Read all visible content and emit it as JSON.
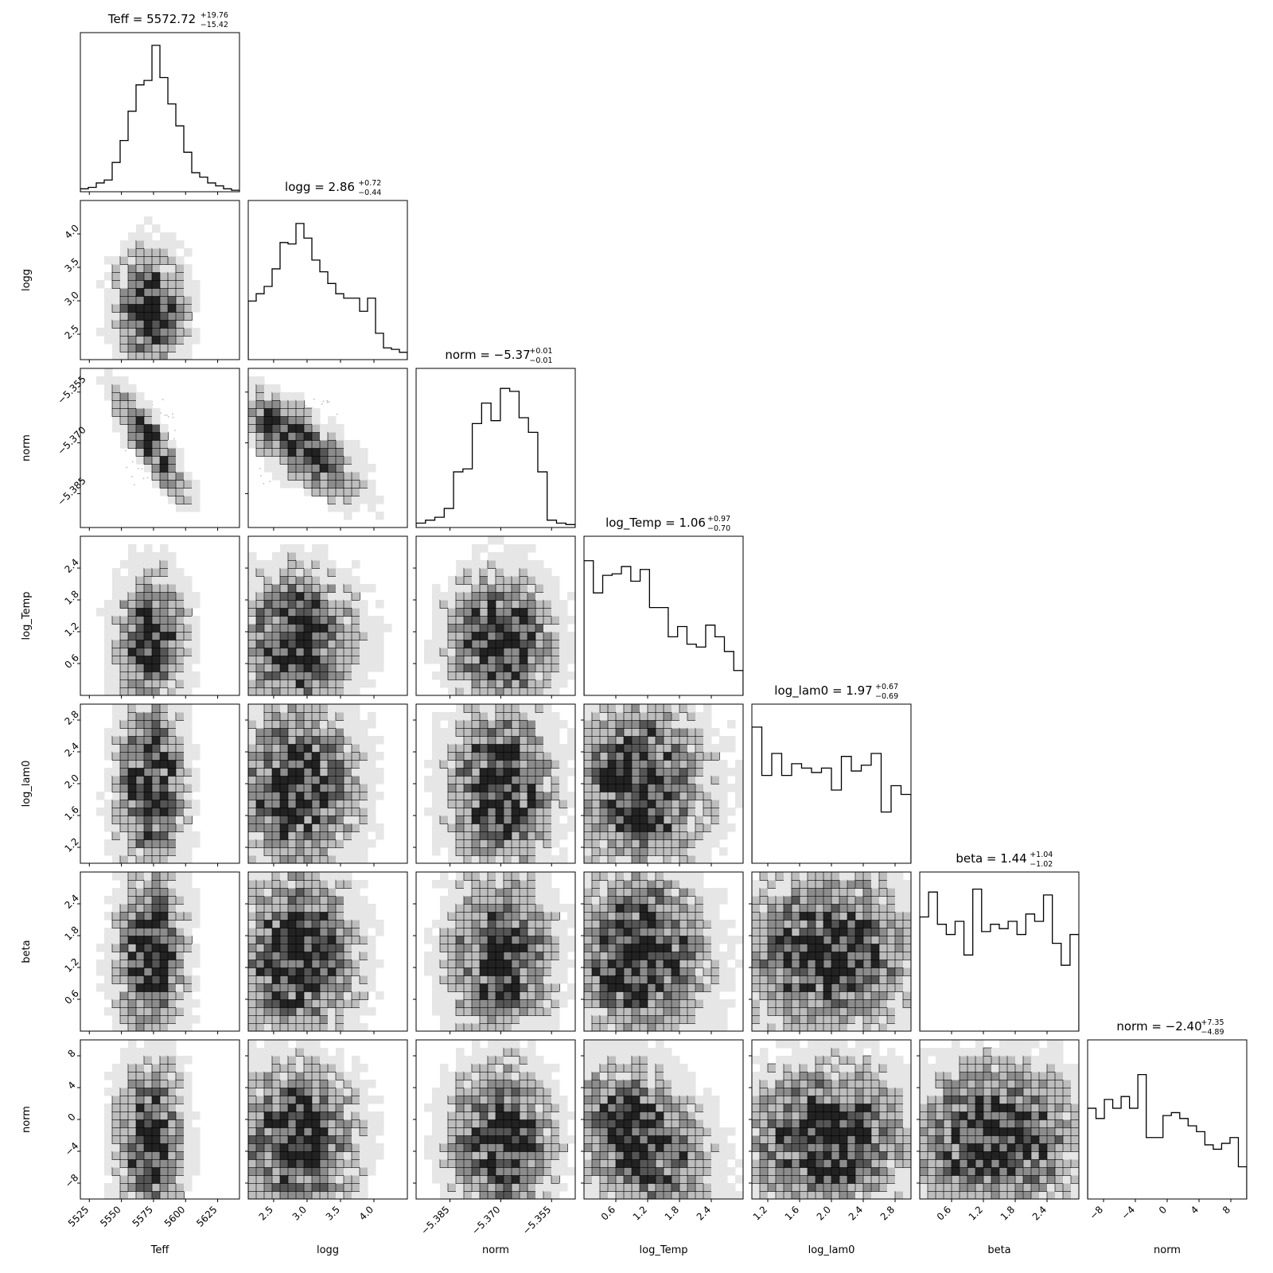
{
  "chart_data": {
    "type": "corner",
    "parameters": [
      {
        "label": "Teff",
        "title_main": "Teff = 5572.72",
        "title_plus": "+19.76",
        "title_minus": "−15.42",
        "range": [
          5518,
          5642
        ],
        "median": 5572.72,
        "minus": 15.42,
        "plus": 19.76,
        "ticks": [
          5525,
          5550,
          5575,
          5600,
          5625
        ],
        "tick_labels": [
          "5525",
          "5550",
          "5575",
          "5600",
          "5625"
        ],
        "hist": [
          0.02,
          0.03,
          0.06,
          0.08,
          0.2,
          0.35,
          0.55,
          0.73,
          0.76,
          1.0,
          0.78,
          0.6,
          0.45,
          0.27,
          0.13,
          0.1,
          0.06,
          0.04,
          0.02,
          0.01
        ]
      },
      {
        "label": "logg",
        "title_main": "logg = 2.86",
        "title_plus": "+0.72",
        "title_minus": "−0.44",
        "range": [
          2.12,
          4.5
        ],
        "median": 2.86,
        "minus": 0.44,
        "plus": 0.72,
        "ticks": [
          2.5,
          3.0,
          3.5,
          4.0
        ],
        "tick_labels": [
          "2.5",
          "3.0",
          "3.5",
          "4.0"
        ],
        "hist": [
          0.4,
          0.45,
          0.5,
          0.62,
          0.8,
          0.79,
          0.93,
          0.83,
          0.68,
          0.6,
          0.52,
          0.45,
          0.42,
          0.42,
          0.33,
          0.42,
          0.18,
          0.08,
          0.07,
          0.05
        ]
      },
      {
        "label": "norm",
        "title_main": "norm = −5.37",
        "title_plus": "+0.01",
        "title_minus": "−0.01",
        "range": [
          -5.395,
          -5.348
        ],
        "median": -5.37,
        "minus": 0.01,
        "plus": 0.01,
        "ticks": [
          -5.385,
          -5.37,
          -5.355
        ],
        "tick_labels": [
          "−5.385",
          "−5.370",
          "−5.355"
        ],
        "hist": [
          0.03,
          0.05,
          0.07,
          0.13,
          0.38,
          0.4,
          0.71,
          0.85,
          0.73,
          0.95,
          0.93,
          0.75,
          0.65,
          0.38,
          0.05,
          0.03,
          0.02
        ]
      },
      {
        "label": "log_Temp",
        "title_main": "log_Temp = 1.06",
        "title_plus": "+0.97",
        "title_minus": "−0.70",
        "range": [
          0.0,
          3.0
        ],
        "median": 1.06,
        "minus": 0.7,
        "plus": 0.97,
        "ticks": [
          0.6,
          1.2,
          1.8,
          2.4
        ],
        "tick_labels": [
          "0.6",
          "1.2",
          "1.8",
          "2.4"
        ],
        "hist": [
          0.92,
          0.7,
          0.82,
          0.83,
          0.88,
          0.78,
          0.86,
          0.6,
          0.6,
          0.4,
          0.47,
          0.35,
          0.33,
          0.48,
          0.4,
          0.3,
          0.17
        ]
      },
      {
        "label": "log_lam0",
        "title_main": "log_lam0 = 1.97",
        "title_plus": "+0.67",
        "title_minus": "−0.69",
        "range": [
          1.0,
          3.0
        ],
        "median": 1.97,
        "minus": 0.69,
        "plus": 0.67,
        "ticks": [
          1.2,
          1.6,
          2.0,
          2.4,
          2.8
        ],
        "tick_labels": [
          "1.2",
          "1.6",
          "2.0",
          "2.4",
          "2.8"
        ],
        "hist": [
          0.93,
          0.6,
          0.75,
          0.6,
          0.68,
          0.65,
          0.62,
          0.65,
          0.5,
          0.73,
          0.63,
          0.67,
          0.75,
          0.35,
          0.53,
          0.47
        ]
      },
      {
        "label": "beta",
        "title_main": "beta = 1.44",
        "title_plus": "+1.04",
        "title_minus": "−1.02",
        "range": [
          0.0,
          3.0
        ],
        "median": 1.44,
        "minus": 1.02,
        "plus": 1.04,
        "ticks": [
          0.6,
          1.2,
          1.8,
          2.4
        ],
        "tick_labels": [
          "0.6",
          "1.2",
          "1.8",
          "2.4"
        ],
        "hist": [
          0.78,
          0.95,
          0.73,
          0.66,
          0.75,
          0.52,
          0.97,
          0.68,
          0.73,
          0.7,
          0.75,
          0.66,
          0.8,
          0.75,
          0.93,
          0.6,
          0.45,
          0.66
        ]
      },
      {
        "label": "norm",
        "title_main": "norm = −2.40",
        "title_plus": "+7.35",
        "title_minus": "−4.89",
        "range": [
          -10,
          10
        ],
        "median": -2.4,
        "minus": 4.89,
        "plus": 7.35,
        "ticks": [
          -8,
          -4,
          0,
          4,
          8
        ],
        "tick_labels": [
          "−8",
          "−4",
          "0",
          "4",
          "8"
        ],
        "hist": [
          0.62,
          0.55,
          0.68,
          0.62,
          0.7,
          0.62,
          0.85,
          0.42,
          0.42,
          0.57,
          0.59,
          0.55,
          0.5,
          0.46,
          0.37,
          0.34,
          0.38,
          0.42,
          0.22
        ]
      }
    ],
    "correlations": {
      "0-2": -0.85,
      "1-2": -0.75,
      "0-1": -0.05,
      "3-6": -0.35
    }
  }
}
